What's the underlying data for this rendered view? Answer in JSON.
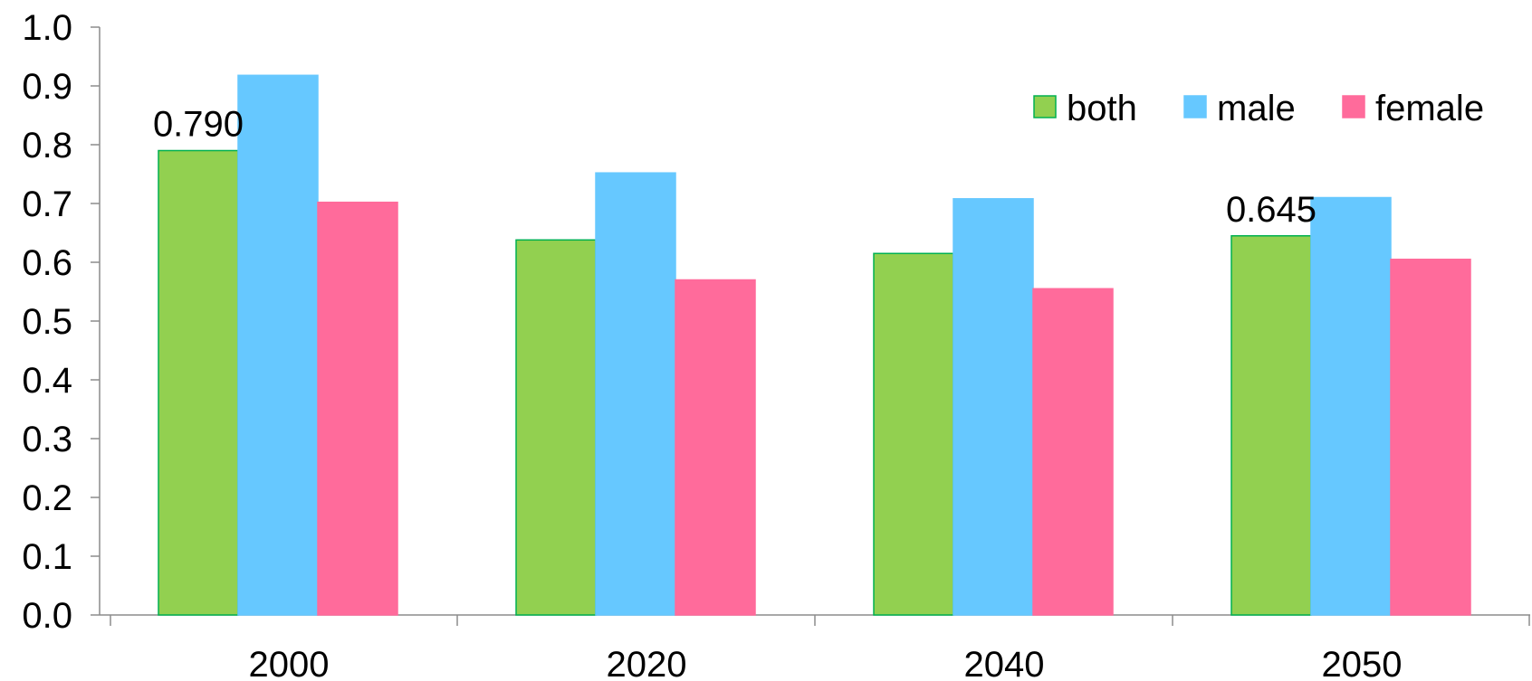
{
  "chart_data": {
    "type": "bar",
    "title": "",
    "xlabel": "",
    "ylabel": "",
    "categories": [
      "2000",
      "2020",
      "2040",
      "2050"
    ],
    "ylim": [
      0,
      1.0
    ],
    "yticks": [
      "0.0",
      "0.1",
      "0.2",
      "0.3",
      "0.4",
      "0.5",
      "0.6",
      "0.7",
      "0.8",
      "0.9",
      "1.0"
    ],
    "grid": false,
    "legend_position": "top-right",
    "series": [
      {
        "name": "both",
        "color": "#92d050",
        "border": "#00b050",
        "values": [
          0.79,
          0.638,
          0.615,
          0.645
        ]
      },
      {
        "name": "male",
        "color": "#66c8ff",
        "border": "#66c8ff",
        "values": [
          0.918,
          0.752,
          0.708,
          0.71
        ]
      },
      {
        "name": "female",
        "color": "#ff6b9b",
        "border": "#ff6b9b",
        "values": [
          0.702,
          0.57,
          0.555,
          0.605
        ]
      }
    ],
    "annotations": [
      {
        "series": "both",
        "category": "2000",
        "text": "0.790"
      },
      {
        "series": "both",
        "category": "2050",
        "text": "0.645"
      }
    ]
  }
}
